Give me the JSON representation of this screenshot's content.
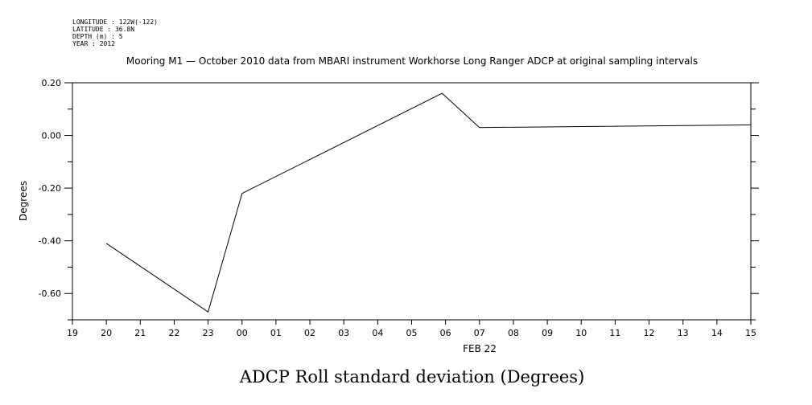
{
  "metadata": [
    "LONGITUDE : 122W(-122)",
    "LATITUDE : 36.8N",
    "DEPTH (m) : 5",
    "YEAR : 2012"
  ],
  "chart_data": {
    "type": "line",
    "title": "Mooring M1 — October 2010 data from MBARI instrument Workhorse Long Ranger ADCP at original sampling intervals",
    "xlabel": "FEB 22",
    "ylabel": "Degrees",
    "caption": "ADCP Roll standard deviation (Degrees)",
    "x_ticks": [
      "19",
      "20",
      "21",
      "22",
      "23",
      "00",
      "01",
      "02",
      "03",
      "04",
      "05",
      "06",
      "07",
      "08",
      "09",
      "10",
      "11",
      "12",
      "13",
      "14",
      "15"
    ],
    "xlim": [
      0,
      20
    ],
    "y_ticks": [
      "0.20",
      "0.00",
      "-0.20",
      "-0.40",
      "-0.60"
    ],
    "y_tick_values": [
      0.2,
      0.0,
      -0.2,
      -0.4,
      -0.6
    ],
    "ylim": [
      -0.7,
      0.2
    ],
    "series": [
      {
        "x": [
          "20",
          "23",
          "00",
          "06",
          "07",
          "15"
        ],
        "x_index": [
          1,
          4,
          5,
          10.9,
          12,
          20
        ],
        "y": [
          -0.41,
          -0.67,
          -0.22,
          0.16,
          0.03,
          0.04
        ]
      }
    ],
    "grid": false,
    "legend": "none"
  }
}
